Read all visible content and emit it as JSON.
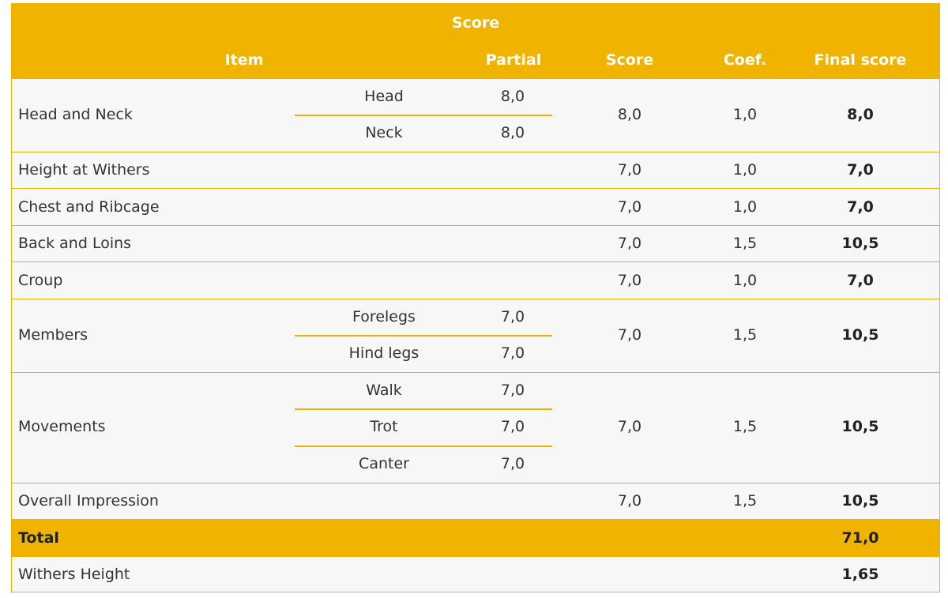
{
  "header": {
    "score_group": "Score",
    "item": "Item",
    "partial": "Partial",
    "score": "Score",
    "coef": "Coef.",
    "final": "Final score"
  },
  "rows": [
    {
      "item": "Head and Neck",
      "subs": [
        {
          "part": "Head",
          "value": "8,0"
        },
        {
          "part": "Neck",
          "value": "8,0"
        }
      ],
      "score": "8,0",
      "coef": "1,0",
      "final": "8,0"
    },
    {
      "item": "Height at Withers",
      "score": "7,0",
      "coef": "1,0",
      "final": "7,0"
    },
    {
      "item": "Chest and Ribcage",
      "score": "7,0",
      "coef": "1,0",
      "final": "7,0"
    },
    {
      "item": "Back and Loins",
      "score": "7,0",
      "coef": "1,5",
      "final": "10,5"
    },
    {
      "item": "Croup",
      "score": "7,0",
      "coef": "1,0",
      "final": "7,0"
    },
    {
      "item": "Members",
      "subs": [
        {
          "part": "Forelegs",
          "value": "7,0"
        },
        {
          "part": "Hind legs",
          "value": "7,0"
        }
      ],
      "score": "7,0",
      "coef": "1,5",
      "final": "10,5"
    },
    {
      "item": "Movements",
      "subs": [
        {
          "part": "Walk",
          "value": "7,0"
        },
        {
          "part": "Trot",
          "value": "7,0"
        },
        {
          "part": "Canter",
          "value": "7,0"
        }
      ],
      "score": "7,0",
      "coef": "1,5",
      "final": "10,5"
    },
    {
      "item": "Overall Impression",
      "score": "7,0",
      "coef": "1,5",
      "final": "10,5"
    }
  ],
  "total": {
    "label": "Total",
    "value": "71,0"
  },
  "withers": {
    "label": "Withers Height",
    "value": "1,65"
  },
  "colors": {
    "accent": "#f0b400",
    "row_bg": "#f7f7f7"
  }
}
